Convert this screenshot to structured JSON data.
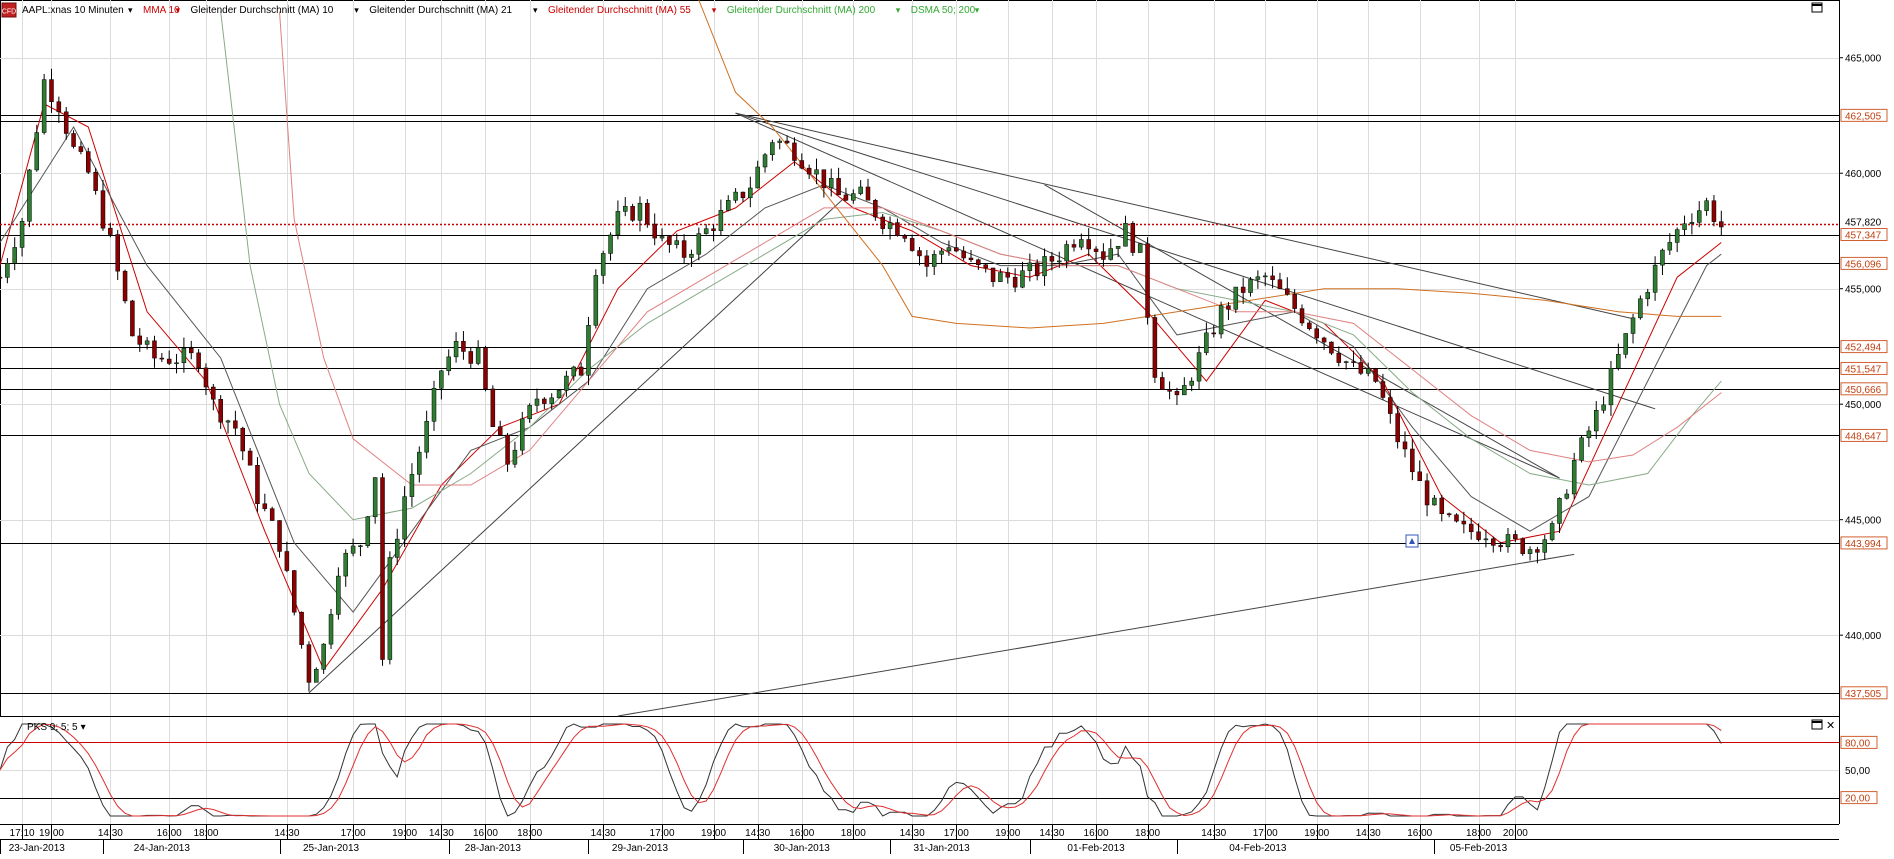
{
  "app": {
    "logo_text": "CFD"
  },
  "indicators": [
    {
      "label": "AAPL:xnas 10 Minuten",
      "color": "#000000",
      "arrow": "▾"
    },
    {
      "label": "MMA 10",
      "color": "#cc0000",
      "arrow": "▾"
    },
    {
      "label": "Gleitender Durchschnitt (MA) 10",
      "color": "#000000",
      "arrow": "▾"
    },
    {
      "label": "Gleitender Durchschnitt (MA) 21",
      "color": "#000000",
      "arrow": "▾"
    },
    {
      "label": "Gleitender Durchschnitt (MA) 55",
      "color": "#cc0000",
      "arrow": "▾"
    },
    {
      "label": "Gleitender Durchschnitt (MA) 200",
      "color": "#33aa33",
      "arrow": "▾"
    },
    {
      "label": "DSMA 50; 200",
      "color": "#33aa33",
      "arrow": "▾"
    }
  ],
  "sub_indicator": {
    "label": "PKS 9; 5; 5",
    "arrow": "▾"
  },
  "window_controls": {
    "maximize_icon": "maximize-icon",
    "close_icon": "close-icon",
    "close_glyph": "✕"
  },
  "chart_data": {
    "type": "candlestick",
    "symbol": "AAPL:xnas",
    "interval": "10 Minuten",
    "ylim": [
      436.5,
      467.5
    ],
    "price_ticks": [
      "465,000",
      "460,000",
      "455,000",
      "450,000",
      "445,000",
      "440,000"
    ],
    "price_tick_values": [
      465,
      460,
      455,
      450,
      445,
      440
    ],
    "horizontal_levels": [
      {
        "value": 462.505,
        "label": "462,505"
      },
      {
        "value": 462.25,
        "label": ""
      },
      {
        "value": 457.347,
        "label": "457,347"
      },
      {
        "value": 456.096,
        "label": "456,096"
      },
      {
        "value": 452.494,
        "label": "452,494"
      },
      {
        "value": 451.547,
        "label": "451,547"
      },
      {
        "value": 450.666,
        "label": "450,666"
      },
      {
        "value": 448.647,
        "label": "448,647"
      },
      {
        "value": 443.994,
        "label": "443,994"
      },
      {
        "value": 437.505,
        "label": "437,505"
      }
    ],
    "current_price": {
      "value": 457.82,
      "label": "457,820"
    },
    "time_labels": [
      "17:10",
      "19:00",
      "14:30",
      "16:00",
      "18:00",
      "14:30",
      "17:00",
      "19:00",
      "14:30",
      "16:00",
      "18:00",
      "14:30",
      "17:00",
      "19:00",
      "14:30",
      "16:00",
      "18:00",
      "14:30",
      "17:00",
      "19:00",
      "14:30",
      "16:00",
      "18:00",
      "14:30",
      "17:00",
      "19:00",
      "14:30",
      "16:00",
      "18:00",
      "20:00"
    ],
    "date_labels": [
      "23-Jan-2013",
      "24-Jan-2013",
      "25-Jan-2013",
      "28-Jan-2013",
      "29-Jan-2013",
      "30-Jan-2013",
      "31-Jan-2013",
      "01-Feb-2013",
      "04-Feb-2013",
      "05-Feb-2013"
    ],
    "close_path": [
      [
        0,
        455.5
      ],
      [
        3,
        458
      ],
      [
        6,
        464
      ],
      [
        8,
        463
      ],
      [
        10,
        461
      ],
      [
        12,
        460
      ],
      [
        15,
        457
      ],
      [
        18,
        453
      ],
      [
        21,
        452
      ],
      [
        24,
        452
      ],
      [
        27,
        452
      ],
      [
        29,
        450
      ],
      [
        32,
        449
      ],
      [
        35,
        446
      ],
      [
        38,
        444
      ],
      [
        40,
        441
      ],
      [
        42,
        438.2
      ],
      [
        44,
        439.5
      ],
      [
        46,
        443
      ],
      [
        49,
        444
      ],
      [
        51,
        447
      ],
      [
        52,
        439
      ],
      [
        53,
        443
      ],
      [
        55,
        446
      ],
      [
        58,
        449
      ],
      [
        60,
        451.5
      ],
      [
        62,
        452.5
      ],
      [
        65,
        452
      ],
      [
        67,
        449
      ],
      [
        69,
        447.5
      ],
      [
        71,
        449
      ],
      [
        73,
        450.3
      ],
      [
        75,
        450.5
      ],
      [
        77,
        451
      ],
      [
        79,
        451.5
      ],
      [
        81,
        456
      ],
      [
        84,
        458
      ],
      [
        87,
        458.5
      ],
      [
        90,
        457
      ],
      [
        93,
        456.5
      ],
      [
        96,
        457.5
      ],
      [
        99,
        458.5
      ],
      [
        102,
        459.5
      ],
      [
        105,
        461.5
      ],
      [
        108,
        461
      ],
      [
        111,
        460
      ],
      [
        114,
        459
      ],
      [
        117,
        459
      ],
      [
        120,
        458
      ],
      [
        123,
        457.5
      ],
      [
        126,
        456
      ],
      [
        129,
        457
      ],
      [
        132,
        456
      ],
      [
        135,
        455.5
      ],
      [
        138,
        455.5
      ],
      [
        141,
        455.8
      ],
      [
        144,
        456.5
      ],
      [
        147,
        457.5
      ],
      [
        150,
        456.5
      ],
      [
        153,
        457.5
      ],
      [
        155,
        456.5
      ],
      [
        157,
        451.5
      ],
      [
        160,
        450
      ],
      [
        163,
        452
      ],
      [
        166,
        454
      ],
      [
        169,
        455
      ],
      [
        172,
        455.5
      ],
      [
        175,
        454.5
      ],
      [
        178,
        453.5
      ],
      [
        181,
        452.5
      ],
      [
        184,
        451.5
      ],
      [
        187,
        451
      ],
      [
        190,
        448.5
      ],
      [
        193,
        446.5
      ],
      [
        196,
        445
      ],
      [
        199,
        444.5
      ],
      [
        202,
        444.5
      ],
      [
        205,
        444
      ],
      [
        208,
        443.8
      ],
      [
        211,
        444.5
      ],
      [
        214,
        447.5
      ],
      [
        217,
        449.5
      ],
      [
        220,
        452
      ],
      [
        223,
        454.5
      ],
      [
        226,
        456.5
      ],
      [
        229,
        458
      ],
      [
        232,
        458.7
      ],
      [
        234,
        457.7
      ]
    ],
    "ma_lines": [
      {
        "color": "#cc0000",
        "points": [
          [
            0,
            456
          ],
          [
            6,
            463
          ],
          [
            12,
            462
          ],
          [
            20,
            454
          ],
          [
            28,
            451
          ],
          [
            36,
            444.5
          ],
          [
            44,
            438.5
          ],
          [
            52,
            442
          ],
          [
            60,
            446.5
          ],
          [
            68,
            449
          ],
          [
            76,
            450
          ],
          [
            84,
            455
          ],
          [
            92,
            457.5
          ],
          [
            100,
            458.5
          ],
          [
            108,
            460.5
          ],
          [
            116,
            458.5
          ],
          [
            124,
            457.5
          ],
          [
            132,
            456
          ],
          [
            140,
            455.5
          ],
          [
            148,
            456.5
          ],
          [
            156,
            454
          ],
          [
            164,
            451
          ],
          [
            172,
            454.5
          ],
          [
            180,
            453.5
          ],
          [
            188,
            451
          ],
          [
            196,
            446
          ],
          [
            204,
            444
          ],
          [
            212,
            444.5
          ],
          [
            220,
            450
          ],
          [
            228,
            455.5
          ],
          [
            234,
            457
          ]
        ]
      },
      {
        "color": "#555555",
        "points": [
          [
            0,
            457
          ],
          [
            10,
            462
          ],
          [
            20,
            456
          ],
          [
            30,
            452
          ],
          [
            40,
            444
          ],
          [
            48,
            441
          ],
          [
            56,
            444.5
          ],
          [
            64,
            448
          ],
          [
            72,
            449
          ],
          [
            80,
            451
          ],
          [
            88,
            455
          ],
          [
            96,
            456.5
          ],
          [
            104,
            458.5
          ],
          [
            112,
            459.5
          ],
          [
            120,
            458.5
          ],
          [
            128,
            457
          ],
          [
            136,
            456
          ],
          [
            144,
            456
          ],
          [
            152,
            456.5
          ],
          [
            160,
            453
          ],
          [
            168,
            453.5
          ],
          [
            176,
            454
          ],
          [
            184,
            452.5
          ],
          [
            192,
            449
          ],
          [
            200,
            446
          ],
          [
            208,
            444.5
          ],
          [
            216,
            446
          ],
          [
            224,
            451
          ],
          [
            232,
            456
          ],
          [
            234,
            456.5
          ]
        ]
      },
      {
        "color": "#88aa88",
        "points": [
          [
            30,
            467
          ],
          [
            34,
            456
          ],
          [
            38,
            450
          ],
          [
            42,
            447
          ],
          [
            48,
            445
          ],
          [
            56,
            445.5
          ],
          [
            64,
            447
          ],
          [
            72,
            449
          ],
          [
            80,
            451.5
          ],
          [
            88,
            453.5
          ],
          [
            96,
            455
          ],
          [
            104,
            456.5
          ],
          [
            112,
            458
          ],
          [
            120,
            458.3
          ],
          [
            128,
            457.5
          ],
          [
            136,
            456.5
          ],
          [
            144,
            456
          ],
          [
            152,
            456
          ],
          [
            160,
            455
          ],
          [
            168,
            454.5
          ],
          [
            176,
            454
          ],
          [
            184,
            453
          ],
          [
            192,
            450.5
          ],
          [
            200,
            448.5
          ],
          [
            208,
            447
          ],
          [
            216,
            446.5
          ],
          [
            224,
            447
          ],
          [
            230,
            449.5
          ],
          [
            234,
            451
          ]
        ]
      },
      {
        "color": "#e08080",
        "points": [
          [
            38,
            467
          ],
          [
            40,
            458
          ],
          [
            44,
            452
          ],
          [
            48,
            448.5
          ],
          [
            56,
            446.5
          ],
          [
            64,
            446.5
          ],
          [
            72,
            448
          ],
          [
            80,
            451
          ],
          [
            88,
            454
          ],
          [
            96,
            455.5
          ],
          [
            104,
            457
          ],
          [
            112,
            458.5
          ],
          [
            120,
            458.5
          ],
          [
            128,
            457.5
          ],
          [
            136,
            456.5
          ],
          [
            144,
            456
          ],
          [
            152,
            456
          ],
          [
            160,
            455
          ],
          [
            168,
            454
          ],
          [
            176,
            454
          ],
          [
            184,
            453.5
          ],
          [
            192,
            451.5
          ],
          [
            200,
            449.5
          ],
          [
            208,
            448
          ],
          [
            216,
            447.5
          ],
          [
            222,
            447.8
          ],
          [
            228,
            449
          ],
          [
            234,
            450.5
          ]
        ]
      },
      {
        "color": "#d07020",
        "points": [
          [
            95,
            467.5
          ],
          [
            100,
            463.5
          ],
          [
            105,
            462
          ],
          [
            110,
            460
          ],
          [
            115,
            458
          ],
          [
            120,
            456
          ],
          [
            124,
            453.8
          ],
          [
            130,
            453.5
          ],
          [
            140,
            453.3
          ],
          [
            150,
            453.5
          ],
          [
            160,
            454
          ],
          [
            170,
            454.5
          ],
          [
            180,
            455
          ],
          [
            190,
            455
          ],
          [
            200,
            454.8
          ],
          [
            210,
            454.5
          ],
          [
            220,
            454
          ],
          [
            228,
            453.8
          ],
          [
            234,
            453.8
          ]
        ]
      }
    ],
    "trend_lines": [
      {
        "from": [
          42,
          437.5
        ],
        "to": [
          115,
          459
        ]
      },
      {
        "from": [
          100,
          462.6
        ],
        "to": [
          222,
          453.7
        ]
      },
      {
        "from": [
          100,
          462.6
        ],
        "to": [
          225,
          449.8
        ]
      },
      {
        "from": [
          100,
          462.6
        ],
        "to": [
          212,
          446.8
        ]
      },
      {
        "from": [
          142,
          459.5
        ],
        "to": [
          212,
          446.8
        ]
      },
      {
        "from": [
          84,
          436.5
        ],
        "to": [
          214,
          443.5
        ]
      }
    ],
    "oscillator": {
      "name": "PKS 9; 5; 5",
      "ylim": [
        0,
        100
      ],
      "ticks": [
        "80,00",
        "50,00",
        "20,00"
      ],
      "tick_values": [
        80,
        50,
        20
      ],
      "levels": [
        80,
        20
      ]
    },
    "xlim": [
      0,
      250
    ],
    "time_label_x": [
      3,
      7,
      15,
      23,
      28,
      39,
      48,
      55,
      60,
      66,
      72,
      82,
      90,
      97,
      103,
      109,
      116,
      124,
      130,
      137,
      143,
      149,
      156,
      165,
      172,
      179,
      186,
      193,
      201,
      206
    ],
    "date_label_x": [
      5,
      22,
      45,
      67,
      87,
      109,
      128,
      149,
      171,
      201
    ]
  }
}
